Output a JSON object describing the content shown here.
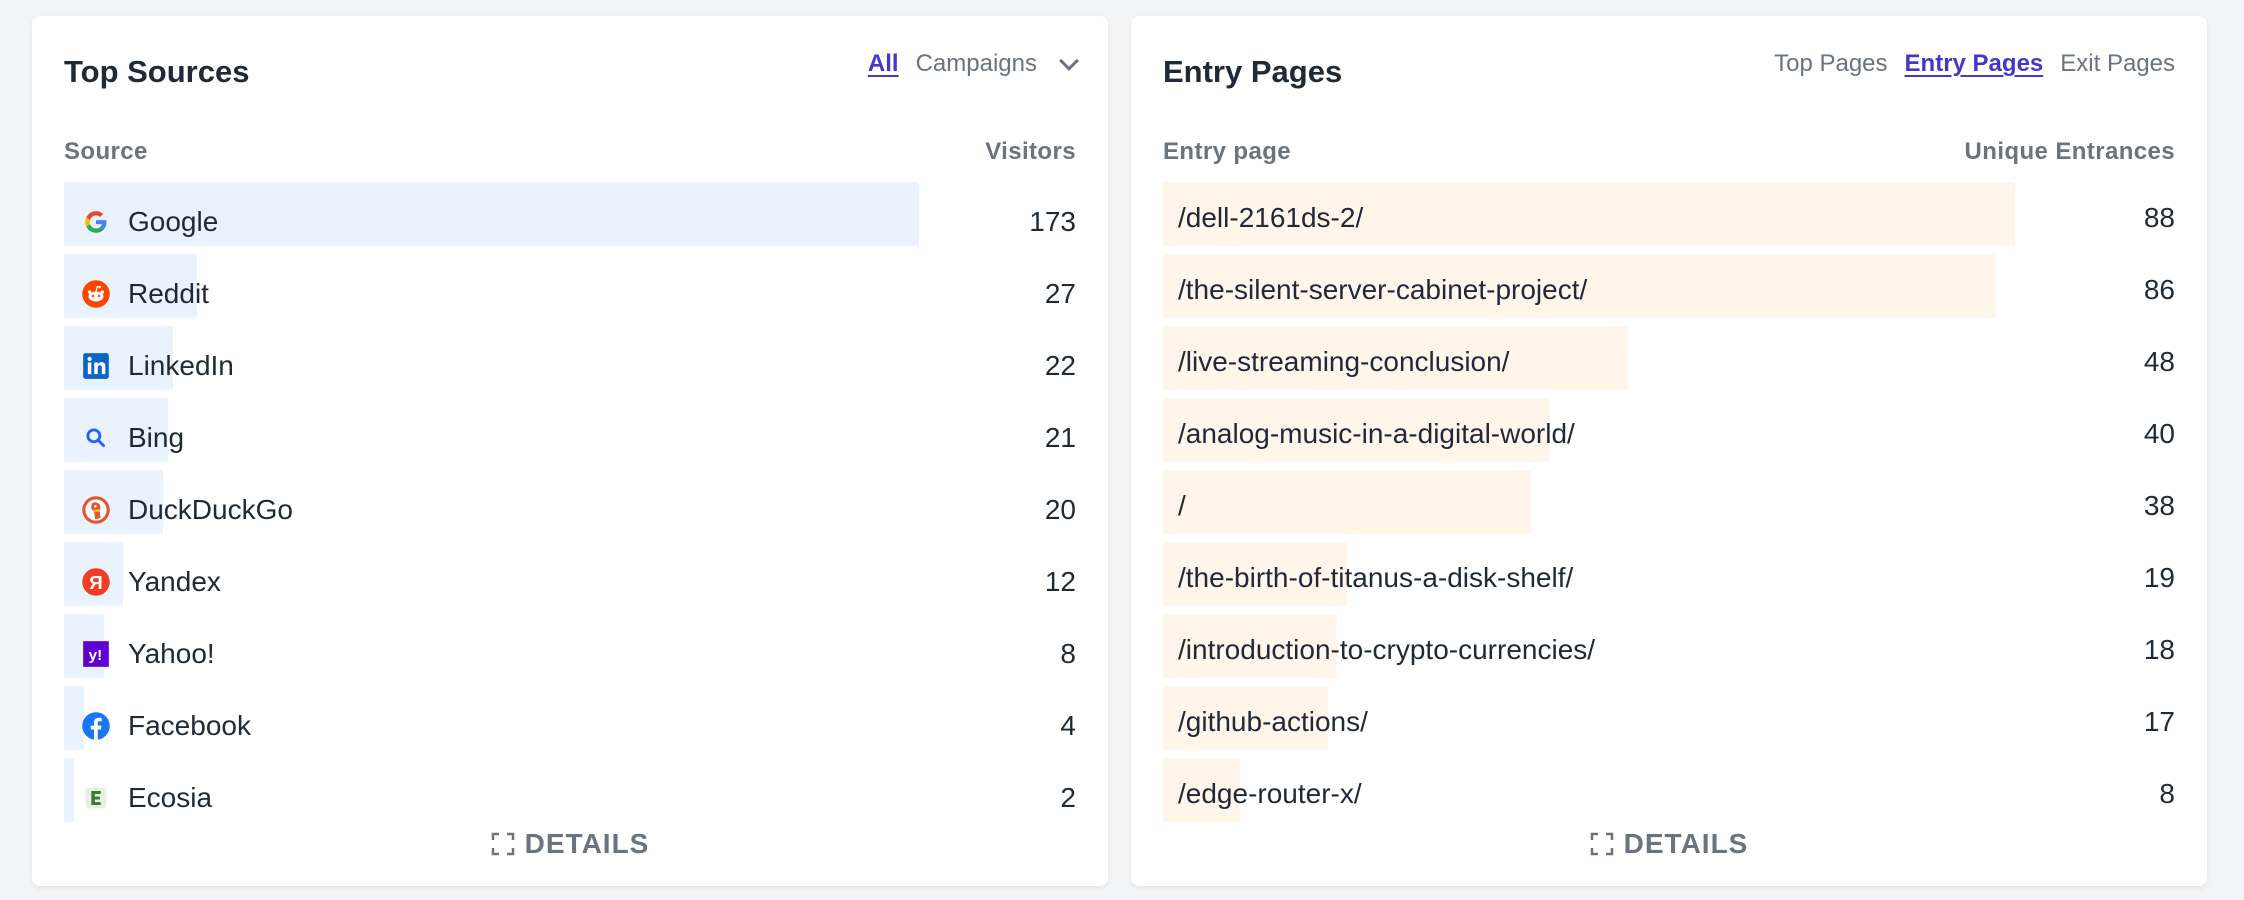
{
  "sources": {
    "title": "Top Sources",
    "tabs": {
      "all": "All",
      "campaigns": "Campaigns"
    },
    "columns": {
      "source": "Source",
      "visitors": "Visitors"
    },
    "max": 173,
    "items": [
      {
        "label": "Google",
        "value": "173",
        "icon": "google-icon",
        "color": "#4285f4"
      },
      {
        "label": "Reddit",
        "value": "27",
        "icon": "reddit-icon",
        "color": "#ff4500"
      },
      {
        "label": "LinkedIn",
        "value": "22",
        "icon": "linkedin-icon",
        "color": "#0a66c2"
      },
      {
        "label": "Bing",
        "value": "21",
        "icon": "bing-search-icon",
        "color": "#2563eb"
      },
      {
        "label": "DuckDuckGo",
        "value": "20",
        "icon": "duckduckgo-icon",
        "color": "#de5833"
      },
      {
        "label": "Yandex",
        "value": "12",
        "icon": "yandex-icon",
        "color": "#f33c24"
      },
      {
        "label": "Yahoo!",
        "value": "8",
        "icon": "yahoo-icon",
        "color": "#6001d2"
      },
      {
        "label": "Facebook",
        "value": "4",
        "icon": "facebook-icon",
        "color": "#1877f2"
      },
      {
        "label": "Ecosia",
        "value": "2",
        "icon": "ecosia-icon",
        "color": "#3a7d2c"
      }
    ],
    "details": "DETAILS"
  },
  "pages": {
    "title": "Entry Pages",
    "tabs": {
      "top": "Top Pages",
      "entry": "Entry Pages",
      "exit": "Exit Pages"
    },
    "columns": {
      "page": "Entry page",
      "entrances": "Unique Entrances"
    },
    "max": 88,
    "items": [
      {
        "label": "/dell-2161ds-2/",
        "value": "88"
      },
      {
        "label": "/the-silent-server-cabinet-project/",
        "value": "86"
      },
      {
        "label": "/live-streaming-conclusion/",
        "value": "48"
      },
      {
        "label": "/analog-music-in-a-digital-world/",
        "value": "40"
      },
      {
        "label": "/",
        "value": "38"
      },
      {
        "label": "/the-birth-of-titanus-a-disk-shelf/",
        "value": "19"
      },
      {
        "label": "/introduction-to-crypto-currencies/",
        "value": "18"
      },
      {
        "label": "/github-actions/",
        "value": "17"
      },
      {
        "label": "/edge-router-x/",
        "value": "8"
      }
    ],
    "details": "DETAILS"
  }
}
